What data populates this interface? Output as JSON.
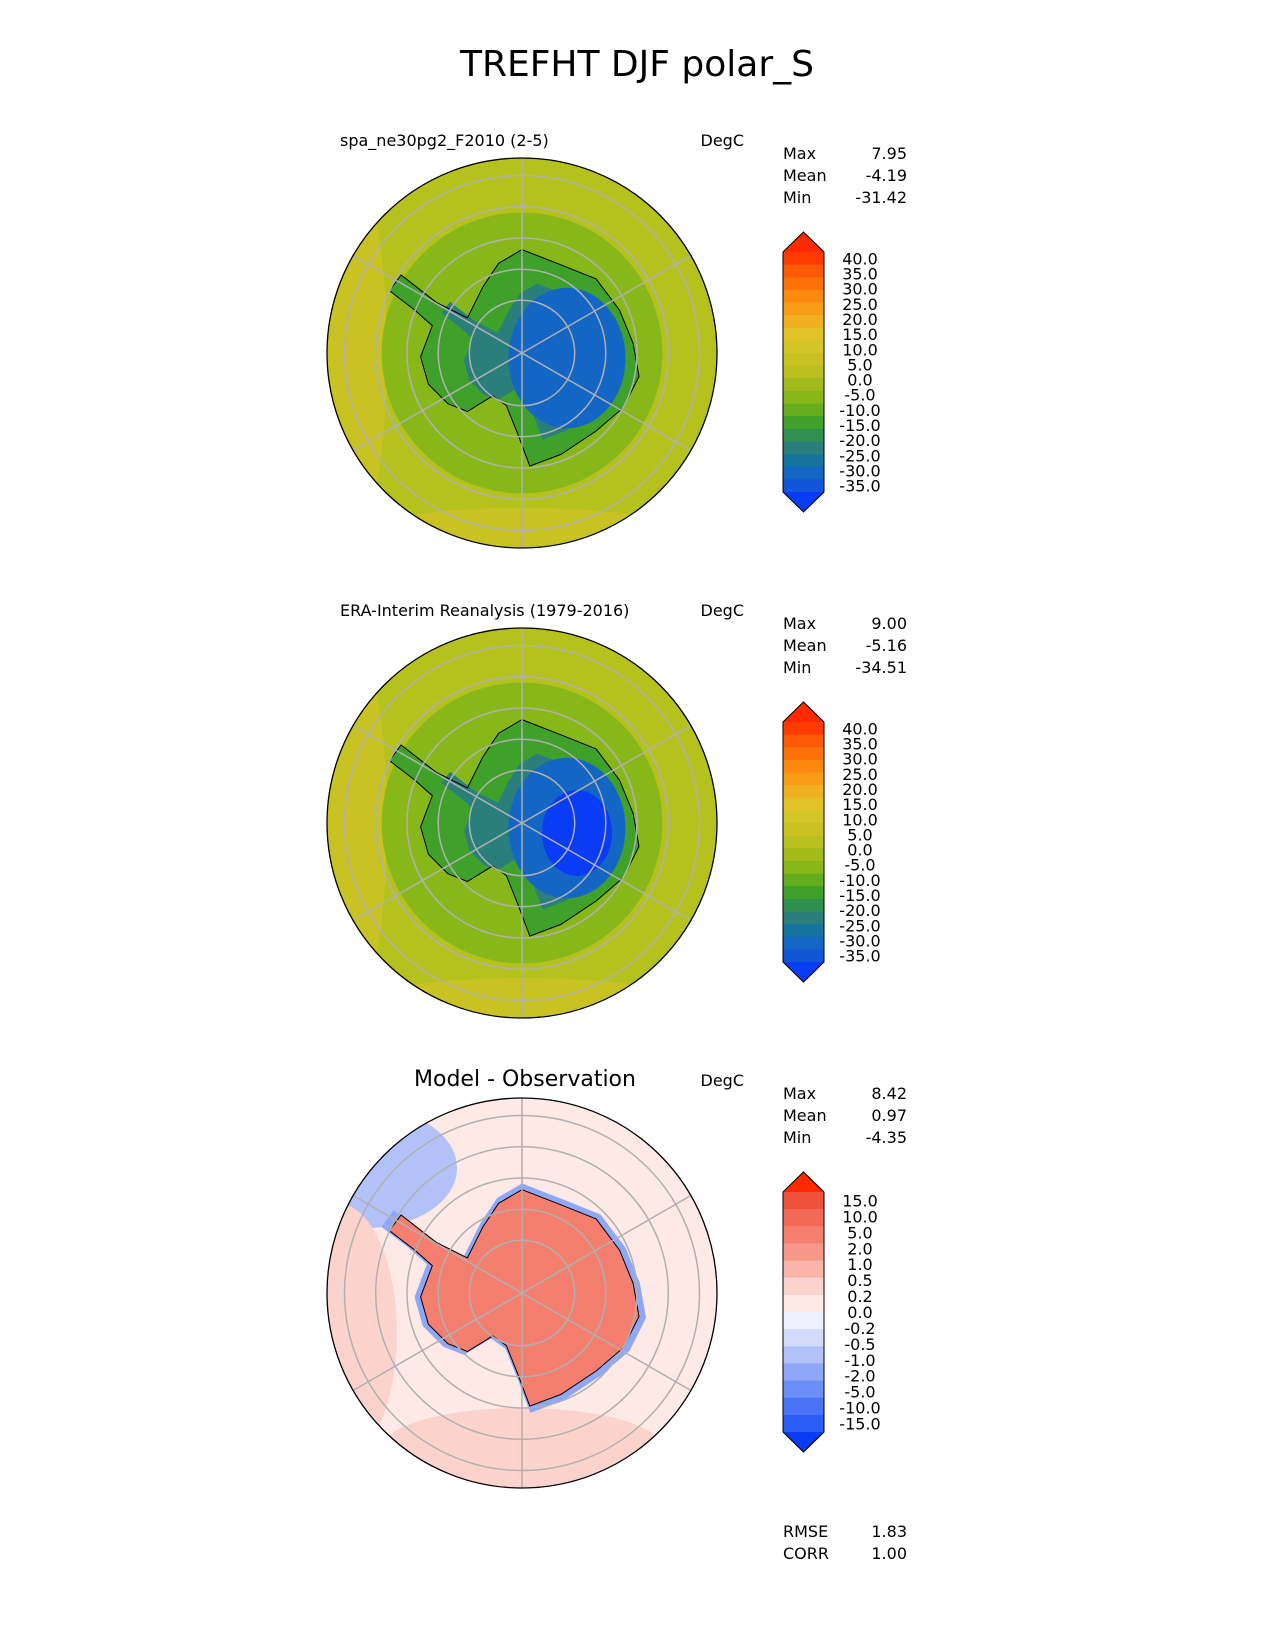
{
  "title": "TREFHT DJF polar_S",
  "stat_labels": {
    "max": "Max",
    "mean": "Mean",
    "min": "Min",
    "rmse": "RMSE",
    "corr": "CORR"
  },
  "colors": {
    "abs_levels": [
      "#0a3cf5",
      "#1155d8",
      "#1466c4",
      "#15749f",
      "#2a7f7c",
      "#2f9050",
      "#3fa02a",
      "#66ad1e",
      "#88b719",
      "#a3ba1b",
      "#b9c01f",
      "#c8c323",
      "#d4c626",
      "#e2c327",
      "#f0b020",
      "#f99c16",
      "#fb8a0e",
      "#fd7208",
      "#fe5a05",
      "#ff3b03",
      "#ff2a00"
    ],
    "diff_levels": [
      "#0a3cf5",
      "#2a5cf6",
      "#4a72f6",
      "#6b8ef7",
      "#8ea8f7",
      "#b2c2f8",
      "#d3dbfa",
      "#edf0fc",
      "#fde9e6",
      "#fcd3cc",
      "#f9b5aa",
      "#f6988a",
      "#f47f6f",
      "#f26a57",
      "#f0533c",
      "#ff2a00"
    ],
    "ocean_mid": "#b5c21e",
    "land_green": "#3fa02a",
    "land_teal": "#2a7f7c",
    "land_blue": "#1466c4",
    "ocean_diff": "#fde9e6",
    "land_diff": "#f47f6f",
    "coast_diff": "#8ea8f7"
  },
  "chart_data": [
    {
      "type": "heatmap",
      "projection": "south-polar-stereographic",
      "title": "spa_ne30pg2_F2010 (2-5)",
      "units": "DegC",
      "stats": {
        "max": "7.95",
        "mean": "-4.19",
        "min": "-31.42"
      },
      "colorbar": {
        "levels": [
          "40.0",
          "35.0",
          "30.0",
          "25.0",
          "20.0",
          "15.0",
          "10.0",
          "5.0",
          "0.0",
          "-5.0",
          "-10.0",
          "-15.0",
          "-20.0",
          "-25.0",
          "-30.0",
          "-35.0"
        ],
        "extend": "both"
      }
    },
    {
      "type": "heatmap",
      "projection": "south-polar-stereographic",
      "title": "ERA-Interim Reanalysis (1979-2016)",
      "units": "DegC",
      "stats": {
        "max": "9.00",
        "mean": "-5.16",
        "min": "-34.51"
      },
      "colorbar": {
        "levels": [
          "40.0",
          "35.0",
          "30.0",
          "25.0",
          "20.0",
          "15.0",
          "10.0",
          "5.0",
          "0.0",
          "-5.0",
          "-10.0",
          "-15.0",
          "-20.0",
          "-25.0",
          "-30.0",
          "-35.0"
        ],
        "extend": "both"
      }
    },
    {
      "type": "heatmap",
      "projection": "south-polar-stereographic",
      "title": "Model - Observation",
      "units": "DegC",
      "stats": {
        "max": "8.42",
        "mean": "0.97",
        "min": "-4.35"
      },
      "colorbar": {
        "levels": [
          "15.0",
          "10.0",
          "5.0",
          "2.0",
          "1.0",
          "0.5",
          "0.2",
          "0.0",
          "-0.2",
          "-0.5",
          "-1.0",
          "-2.0",
          "-5.0",
          "-10.0",
          "-15.0"
        ],
        "extend": "both"
      },
      "metrics": {
        "rmse": "1.83",
        "corr": "1.00"
      }
    }
  ]
}
